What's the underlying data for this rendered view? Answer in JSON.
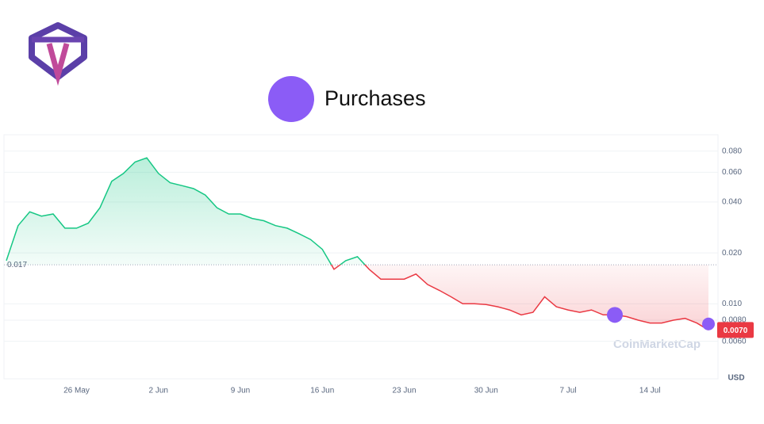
{
  "chart_data": {
    "type": "line",
    "legend": "top-center",
    "categories": [
      null,
      null,
      null,
      null,
      null,
      null,
      "26 May",
      null,
      null,
      null,
      null,
      null,
      null,
      "2 Jun",
      null,
      null,
      null,
      null,
      null,
      null,
      "9 Jun",
      null,
      null,
      null,
      null,
      null,
      null,
      "16 Jun",
      null,
      null,
      null,
      null,
      null,
      null,
      "23 Jun",
      null,
      null,
      null,
      null,
      null,
      null,
      "30 Jun",
      null,
      null,
      null,
      null,
      null,
      null,
      "7 Jul",
      null,
      null,
      null,
      null,
      null,
      null,
      "14 Jul",
      null,
      null,
      null,
      null,
      null
    ],
    "series": [
      {
        "name": null,
        "type": "line",
        "color_up": "#16c784",
        "color_down": "#ea3943",
        "values": [
          0.018,
          0.029,
          0.035,
          0.033,
          0.034,
          0.028,
          0.028,
          0.03,
          0.037,
          0.053,
          0.059,
          0.069,
          0.073,
          0.059,
          0.052,
          0.05,
          0.048,
          0.044,
          0.037,
          0.034,
          0.034,
          0.032,
          0.031,
          0.029,
          0.028,
          0.026,
          0.024,
          0.021,
          0.016,
          0.018,
          0.019,
          0.016,
          0.014,
          0.014,
          0.014,
          0.015,
          0.013,
          0.012,
          0.011,
          0.01,
          0.01,
          0.0099,
          0.0096,
          0.0092,
          0.0086,
          0.0089,
          0.011,
          0.0096,
          0.0092,
          0.0089,
          0.0092,
          0.0086,
          0.0086,
          0.0084,
          0.008,
          0.0077,
          0.0077,
          0.008,
          0.0082,
          0.0077,
          0.007
        ],
        "value_labels": [
          null,
          null,
          null,
          null,
          null,
          null,
          null,
          null,
          null,
          null,
          null,
          null,
          null,
          null,
          null,
          null,
          null,
          null,
          null,
          null,
          null,
          null,
          null,
          null,
          null,
          null,
          null,
          null,
          null,
          null,
          null,
          null,
          null,
          null,
          null,
          null,
          null,
          null,
          null,
          null,
          null,
          null,
          null,
          null,
          null,
          null,
          null,
          null,
          null,
          null,
          null,
          null,
          null,
          null,
          null,
          null,
          null,
          null,
          null,
          null,
          "0.0070"
        ]
      },
      {
        "name": "Purchases",
        "type": "scatter",
        "color": "#8b5cf6",
        "values": [
          null,
          null,
          null,
          null,
          null,
          null,
          null,
          null,
          null,
          null,
          null,
          null,
          null,
          null,
          null,
          null,
          null,
          null,
          null,
          null,
          null,
          null,
          null,
          null,
          null,
          null,
          null,
          null,
          null,
          null,
          null,
          null,
          null,
          null,
          null,
          null,
          null,
          null,
          null,
          null,
          null,
          null,
          null,
          null,
          null,
          null,
          null,
          null,
          null,
          null,
          null,
          null,
          0.0086,
          null,
          null,
          null,
          null,
          null,
          null,
          null,
          0.0076
        ]
      }
    ],
    "baseline": 0.017,
    "log_scale": true,
    "grid": true,
    "ylim": [
      0.0036,
      0.1
    ],
    "yticks": [
      {
        "value": 0.08,
        "label": "0.080"
      },
      {
        "value": 0.06,
        "label": "0.060"
      },
      {
        "value": 0.04,
        "label": "0.040"
      },
      {
        "value": 0.02,
        "label": "0.020"
      },
      {
        "value": 0.01,
        "label": "0.010"
      },
      {
        "value": 0.008,
        "label": "0.0080"
      },
      {
        "value": 0.006,
        "label": "0.0060"
      }
    ],
    "currency": "USD",
    "watermark": "CoinMarketCap"
  }
}
